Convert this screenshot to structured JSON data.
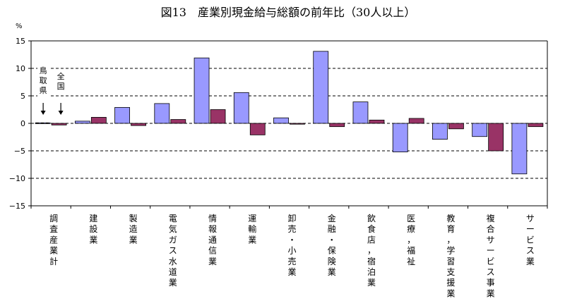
{
  "chart_data": {
    "type": "bar",
    "title": "図13　産業別現金給与総額の前年比（30人以上）",
    "ylabel": "%",
    "xlabel": "",
    "ylim": [
      -15,
      15
    ],
    "yticks": [
      "15",
      "10",
      "5",
      "0",
      "−5",
      "−10",
      "−15"
    ],
    "grid": "horizontal dashed at 10, 5, -5, -10",
    "categories": [
      "調査産業計",
      "建設業",
      "製造業",
      "電気ガス水道業",
      "情報通信業",
      "運輸業",
      "卸売・小売業",
      "金融・保険業",
      "飲食店，宿泊業",
      "医療，福祉",
      "教育，学習支援業",
      "複合サービス事業",
      "サービス業"
    ],
    "series": [
      {
        "name": "鳥取県",
        "color": "#9999ff",
        "values": [
          0.1,
          0.4,
          2.9,
          3.6,
          11.9,
          5.6,
          1.0,
          13.1,
          3.9,
          -5.2,
          -2.9,
          -2.4,
          -9.2
        ]
      },
      {
        "name": "全国",
        "color": "#993366",
        "values": [
          -0.3,
          1.1,
          -0.4,
          0.7,
          2.5,
          -2.1,
          0.0,
          -0.6,
          0.6,
          0.9,
          -1.0,
          -5.0,
          -0.6
        ]
      }
    ],
    "annotations": [
      {
        "text": "鳥取県",
        "points_to": "調査産業計 鳥取県"
      },
      {
        "text": "全国",
        "points_to": "調査産業計 全国"
      }
    ]
  }
}
